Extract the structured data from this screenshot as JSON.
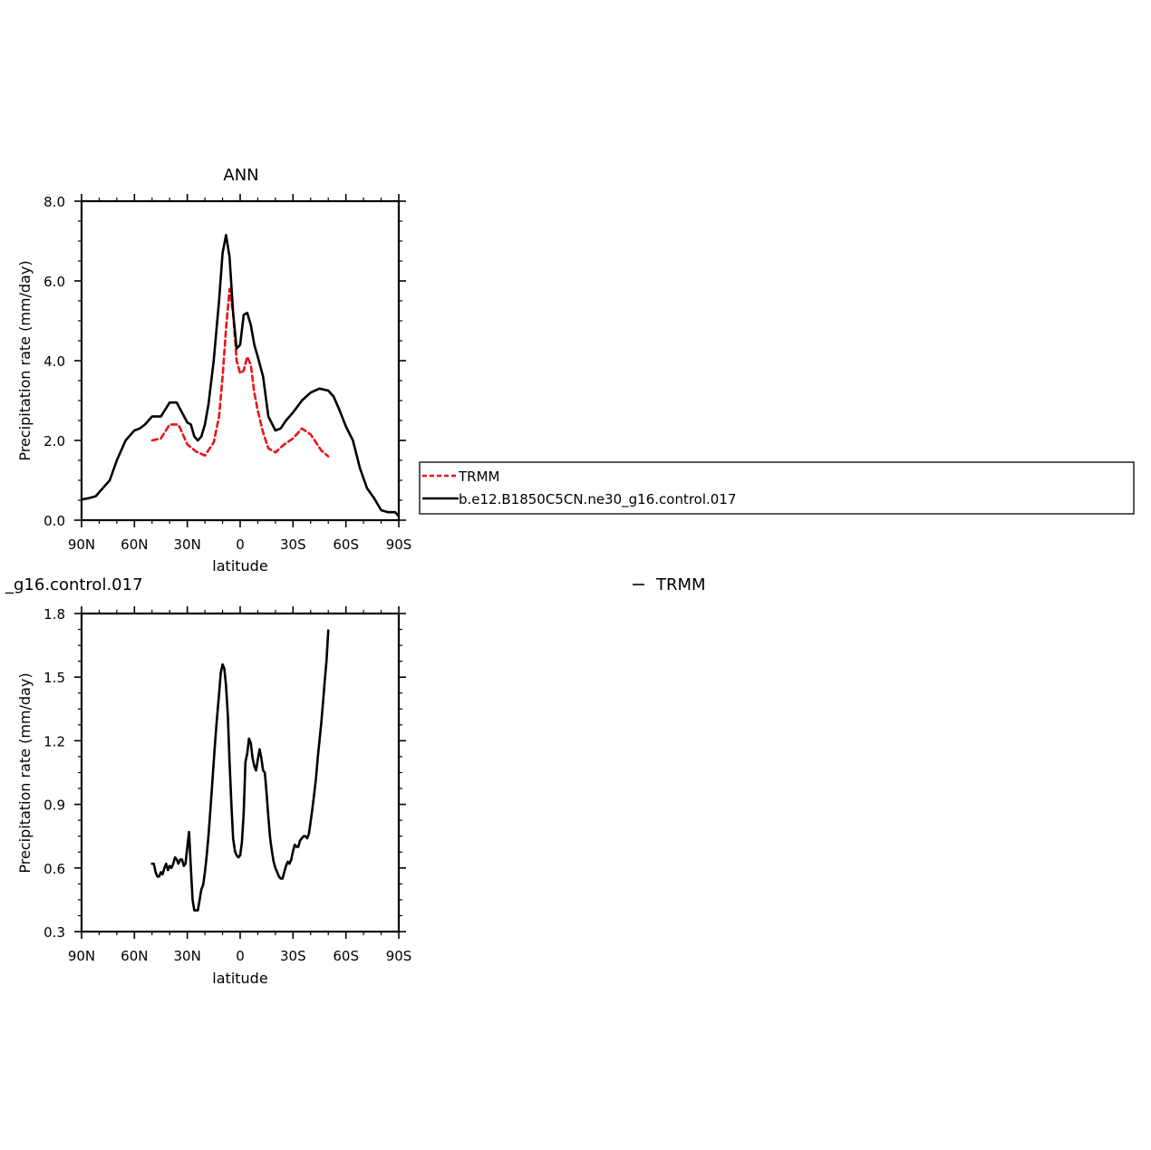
{
  "chart_data": [
    {
      "type": "line",
      "title": "ANN",
      "xlabel": "latitude",
      "ylabel": "Precipitation rate (mm/day)",
      "xlim": [
        90,
        -90
      ],
      "ylim": [
        0,
        8
      ],
      "x_tick_values": [
        90,
        60,
        30,
        0,
        -30,
        -60,
        -90
      ],
      "x_tick_labels": [
        "90N",
        "60N",
        "30N",
        "0",
        "30S",
        "60S",
        "90S"
      ],
      "y_tick_values": [
        0,
        2,
        4,
        6,
        8
      ],
      "y_tick_labels": [
        "0.0",
        "2.0",
        "4.0",
        "6.0",
        "8.0"
      ],
      "grid": false,
      "legend_position": "right",
      "series": [
        {
          "name": "TRMM",
          "color": "#e8141a",
          "dash": "dashed",
          "x": [
            50,
            45,
            40,
            35,
            30,
            25,
            20,
            15,
            12,
            10,
            8,
            6,
            4,
            2,
            0,
            -2,
            -4,
            -6,
            -8,
            -10,
            -13,
            -16,
            -20,
            -25,
            -30,
            -35,
            -40,
            -43,
            -46,
            -50
          ],
          "y": [
            2.0,
            2.05,
            2.4,
            2.4,
            1.9,
            1.72,
            1.62,
            1.95,
            2.6,
            3.6,
            4.8,
            5.8,
            5.2,
            4.0,
            3.68,
            3.75,
            4.1,
            3.9,
            3.2,
            2.75,
            2.2,
            1.8,
            1.7,
            1.9,
            2.05,
            2.3,
            2.15,
            1.95,
            1.75,
            1.6
          ]
        },
        {
          "name": "b.e12.B1850C5CN.ne30_g16.control.017",
          "color": "#000000",
          "dash": "solid",
          "x": [
            90,
            86,
            82,
            78,
            74,
            70,
            65,
            60,
            57,
            54,
            50,
            47,
            45,
            40,
            36,
            33,
            30,
            28,
            26,
            24,
            22,
            20,
            18,
            15,
            12,
            10,
            8,
            6,
            4,
            2,
            0,
            -2,
            -4,
            -6,
            -8,
            -10,
            -13,
            -16,
            -20,
            -23,
            -26,
            -30,
            -35,
            -40,
            -45,
            -50,
            -53,
            -56,
            -60,
            -64,
            -68,
            -72,
            -76,
            -80,
            -84,
            -88,
            -90
          ],
          "y": [
            0.52,
            0.55,
            0.6,
            0.8,
            1.0,
            1.5,
            2.0,
            2.25,
            2.3,
            2.4,
            2.6,
            2.6,
            2.6,
            2.95,
            2.95,
            2.7,
            2.45,
            2.4,
            2.1,
            2.0,
            2.1,
            2.4,
            2.9,
            4.0,
            5.5,
            6.7,
            7.15,
            6.6,
            5.2,
            4.3,
            4.4,
            5.15,
            5.2,
            4.9,
            4.4,
            4.1,
            3.6,
            2.6,
            2.25,
            2.3,
            2.5,
            2.7,
            3.0,
            3.2,
            3.3,
            3.25,
            3.1,
            2.8,
            2.35,
            2.0,
            1.3,
            0.8,
            0.55,
            0.25,
            0.2,
            0.2,
            0.1
          ]
        }
      ]
    },
    {
      "type": "line",
      "title_left": "_g16.control.017",
      "title_right": "TRMM",
      "xlabel": "latitude",
      "ylabel": "Precipitation rate (mm/day)",
      "xlim": [
        90,
        -90
      ],
      "ylim": [
        0.3,
        1.8
      ],
      "x_tick_values": [
        90,
        60,
        30,
        0,
        -30,
        -60,
        -90
      ],
      "x_tick_labels": [
        "90N",
        "60N",
        "30N",
        "0",
        "30S",
        "60S",
        "90S"
      ],
      "y_tick_values": [
        0.3,
        0.6,
        0.9,
        1.2,
        1.5,
        1.8
      ],
      "y_tick_labels": [
        "0.3",
        "0.6",
        "0.9",
        "1.2",
        "1.5",
        "1.8"
      ],
      "grid": false,
      "series": [
        {
          "color": "#000000",
          "dash": "solid",
          "x": [
            50,
            49,
            48,
            47,
            46,
            45,
            44,
            43,
            42,
            41,
            40,
            39,
            38,
            37,
            36,
            35,
            34,
            33,
            32,
            31,
            30,
            29,
            28,
            27,
            26,
            25,
            24,
            23,
            22,
            21,
            20,
            19,
            18,
            17,
            16,
            15,
            14,
            13,
            12,
            11,
            10,
            9,
            8,
            7,
            6,
            5,
            4,
            3,
            2,
            1,
            0,
            -1,
            -2,
            -3,
            -4,
            -5,
            -6,
            -7,
            -8,
            -9,
            -10,
            -11,
            -12,
            -13,
            -14,
            -15,
            -16,
            -17,
            -18,
            -19,
            -20,
            -21,
            -22,
            -23,
            -24,
            -25,
            -26,
            -27,
            -28,
            -29,
            -30,
            -31,
            -32,
            -33,
            -34,
            -35,
            -36,
            -37,
            -38,
            -39,
            -40,
            -41,
            -42,
            -43,
            -44,
            -45,
            -46,
            -47,
            -48,
            -49,
            -50
          ],
          "y": [
            0.62,
            0.62,
            0.58,
            0.56,
            0.56,
            0.58,
            0.57,
            0.6,
            0.62,
            0.59,
            0.61,
            0.6,
            0.62,
            0.65,
            0.64,
            0.62,
            0.64,
            0.64,
            0.61,
            0.62,
            0.7,
            0.77,
            0.6,
            0.45,
            0.4,
            0.4,
            0.4,
            0.45,
            0.5,
            0.52,
            0.58,
            0.66,
            0.75,
            0.86,
            0.98,
            1.1,
            1.22,
            1.32,
            1.42,
            1.52,
            1.56,
            1.54,
            1.46,
            1.32,
            1.1,
            0.9,
            0.74,
            0.68,
            0.66,
            0.65,
            0.66,
            0.72,
            0.86,
            1.1,
            1.14,
            1.21,
            1.19,
            1.12,
            1.08,
            1.06,
            1.11,
            1.16,
            1.12,
            1.06,
            1.05,
            0.95,
            0.84,
            0.74,
            0.68,
            0.63,
            0.6,
            0.58,
            0.56,
            0.55,
            0.55,
            0.58,
            0.61,
            0.63,
            0.62,
            0.64,
            0.68,
            0.71,
            0.7,
            0.7,
            0.73,
            0.74,
            0.75,
            0.75,
            0.74,
            0.76,
            0.82,
            0.88,
            0.95,
            1.02,
            1.12,
            1.2,
            1.28,
            1.38,
            1.48,
            1.58,
            1.72
          ]
        }
      ]
    }
  ],
  "legend": {
    "items": [
      {
        "label": "TRMM",
        "color": "#e8141a",
        "dash": "dashed"
      },
      {
        "label": "b.e12.B1850C5CN.ne30_g16.control.017",
        "color": "#000000",
        "dash": "solid"
      }
    ]
  }
}
